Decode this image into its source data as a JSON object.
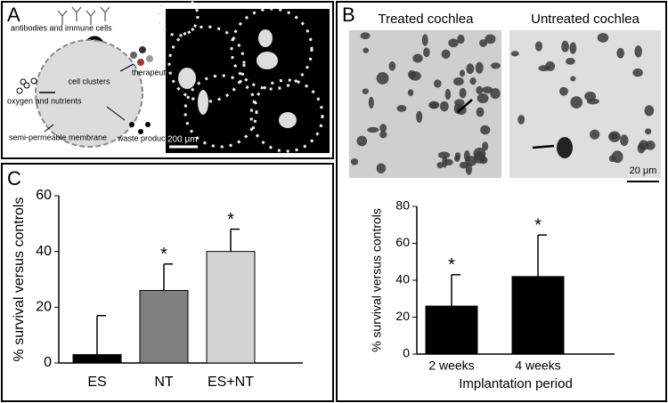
{
  "panels": {
    "A": {
      "label": "A",
      "diagram": {
        "antibodies": "antibodies and immune cells",
        "clusters": "cell clusters",
        "therapeutic": "therapeutic products",
        "oxygen": "oxygen and nutrients",
        "membrane": "semi-permeable membrane",
        "waste": "waste products"
      },
      "scale_bar": "200 μm"
    },
    "B": {
      "label": "B",
      "image_titles": [
        "Treated cochlea",
        "Untreated cochlea"
      ],
      "scale_bar": "20 μm"
    },
    "C": {
      "label": "C"
    }
  },
  "chart_data": [
    {
      "type": "bar",
      "categories": [
        "ES",
        "NT",
        "ES+NT"
      ],
      "values": [
        3,
        26,
        40
      ],
      "errors": [
        14,
        9.5,
        8
      ],
      "colors": [
        "#000000",
        "#808080",
        "#d3d3d3"
      ],
      "significance": [
        null,
        "*",
        "*"
      ],
      "y_label": "% survival versus controls",
      "ylim": [
        0,
        60
      ],
      "yticks": [
        0,
        20,
        40,
        60
      ]
    },
    {
      "type": "bar",
      "categories": [
        "2 weeks",
        "4 weeks"
      ],
      "values": [
        26,
        42
      ],
      "errors": [
        17,
        22.5
      ],
      "colors": [
        "#000000",
        "#000000"
      ],
      "significance": [
        "*",
        "*"
      ],
      "x_label": "Implantation period",
      "y_label": "% survival versus controls",
      "ylim": [
        0,
        80
      ],
      "yticks": [
        0,
        20,
        40,
        60,
        80
      ]
    }
  ]
}
